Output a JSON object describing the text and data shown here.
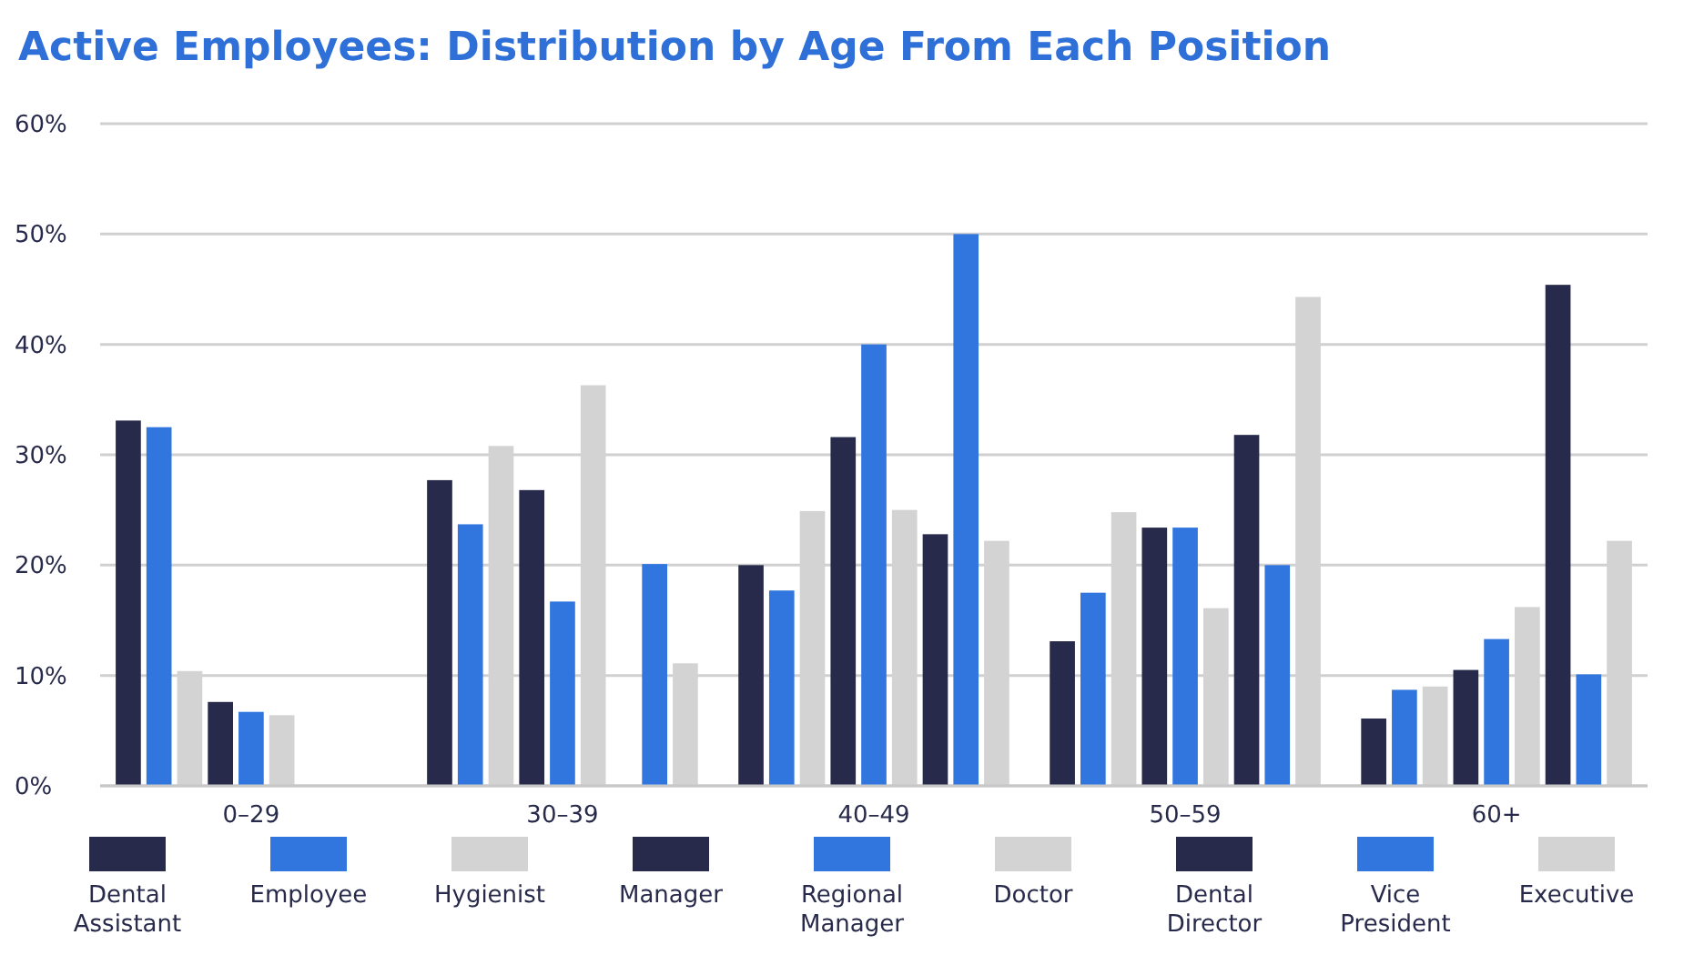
{
  "chart_data": {
    "type": "bar",
    "title": "Active Employees: Distribution by Age From Each Position",
    "categories": [
      "0–29",
      "30–39",
      "40–49",
      "50–59",
      "60+"
    ],
    "series": [
      {
        "name": "Dental Assistant",
        "color": "#272a4a",
        "values": [
          33.1,
          27.7,
          20.0,
          13.1,
          6.1
        ]
      },
      {
        "name": "Employee",
        "color": "#3176de",
        "values": [
          32.5,
          23.7,
          17.7,
          17.5,
          8.7
        ]
      },
      {
        "name": "Hygienist",
        "color": "#d3d3d3",
        "values": [
          10.4,
          30.8,
          24.9,
          24.8,
          9.0
        ]
      },
      {
        "name": "Manager",
        "color": "#272a4a",
        "values": [
          7.6,
          26.8,
          31.6,
          23.4,
          10.5
        ]
      },
      {
        "name": "Regional Manager",
        "color": "#3176de",
        "values": [
          6.7,
          16.7,
          40.0,
          23.4,
          13.3
        ]
      },
      {
        "name": "Doctor",
        "color": "#d3d3d3",
        "values": [
          6.4,
          36.3,
          25.0,
          16.1,
          16.2
        ]
      },
      {
        "name": "Dental Director",
        "color": "#272a4a",
        "values": [
          0,
          0,
          22.8,
          31.8,
          45.4
        ]
      },
      {
        "name": "Vice President",
        "color": "#3176de",
        "values": [
          0,
          20.1,
          50.0,
          20.0,
          10.1
        ]
      },
      {
        "name": "Executive",
        "color": "#d3d3d3",
        "values": [
          0,
          11.1,
          22.2,
          44.3,
          22.2
        ]
      }
    ],
    "ylim": [
      0,
      60
    ],
    "yticks": [
      {
        "value": 0,
        "label": "0%"
      },
      {
        "value": 10,
        "label": "10%"
      },
      {
        "value": 20,
        "label": "20%"
      },
      {
        "value": 30,
        "label": "30%"
      },
      {
        "value": 40,
        "label": "40%"
      },
      {
        "value": 50,
        "label": "50%"
      },
      {
        "value": 60,
        "label": "60%"
      }
    ],
    "grid": "y",
    "legend": "bottom"
  }
}
